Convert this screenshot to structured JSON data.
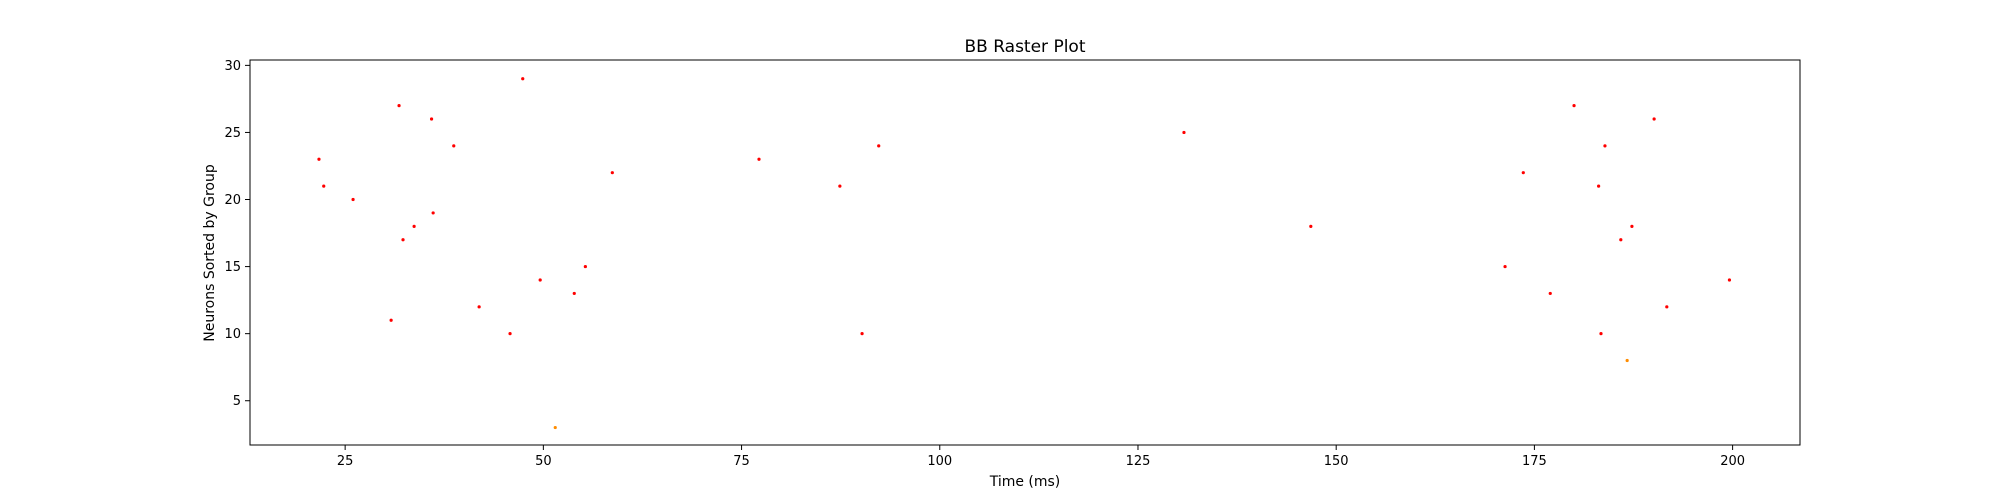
{
  "chart_data": {
    "type": "scatter",
    "title": "BB Raster Plot",
    "xlabel": "Time (ms)",
    "ylabel": "Neurons Sorted by Group",
    "xlim": [
      13,
      208.5
    ],
    "ylim": [
      1.7,
      30.4
    ],
    "xticks": [
      25,
      50,
      75,
      100,
      125,
      150,
      175,
      200
    ],
    "yticks": [
      5,
      10,
      15,
      20,
      25,
      30
    ],
    "grid": false,
    "colors": {
      "primary": "#ff0000",
      "secondary": "#ff8c00"
    },
    "series": [
      {
        "color": "#ff0000",
        "points": [
          [
            21.7,
            23
          ],
          [
            22.3,
            21
          ],
          [
            26.0,
            20
          ],
          [
            30.8,
            11
          ],
          [
            31.8,
            27
          ],
          [
            32.3,
            17
          ],
          [
            33.7,
            18
          ],
          [
            35.9,
            26
          ],
          [
            36.1,
            19
          ],
          [
            38.7,
            24
          ],
          [
            41.9,
            12
          ],
          [
            45.8,
            10
          ],
          [
            47.4,
            29
          ],
          [
            49.6,
            14
          ],
          [
            53.9,
            13
          ],
          [
            55.3,
            15
          ],
          [
            58.7,
            22
          ],
          [
            77.2,
            23
          ],
          [
            87.4,
            21
          ],
          [
            90.2,
            10
          ],
          [
            92.3,
            24
          ],
          [
            130.8,
            25
          ],
          [
            146.8,
            18
          ],
          [
            171.3,
            15
          ],
          [
            173.6,
            22
          ],
          [
            177.0,
            13
          ],
          [
            180.0,
            27
          ],
          [
            183.1,
            21
          ],
          [
            183.4,
            10
          ],
          [
            183.9,
            24
          ],
          [
            185.9,
            17
          ],
          [
            187.3,
            18
          ],
          [
            190.1,
            26
          ],
          [
            191.7,
            12
          ],
          [
            199.6,
            14
          ]
        ]
      },
      {
        "color": "#ff8c00",
        "points": [
          [
            51.5,
            3
          ],
          [
            186.7,
            8
          ]
        ]
      }
    ]
  }
}
